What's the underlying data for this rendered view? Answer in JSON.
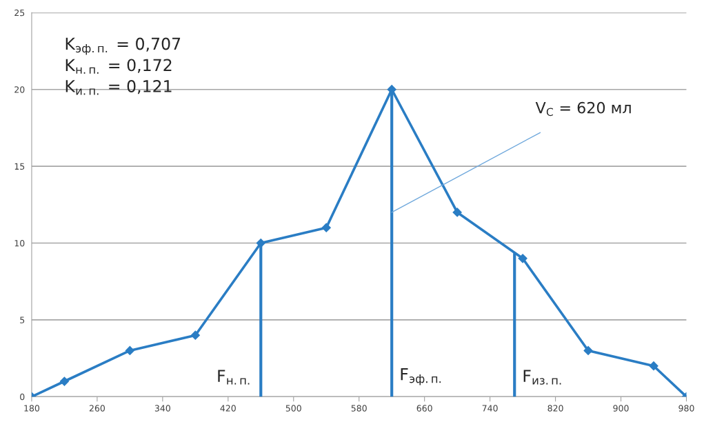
{
  "chart_data": {
    "type": "line",
    "series": [
      {
        "color": "#2a7dc4",
        "marker": "diamond",
        "x": [
          180,
          220,
          300,
          380,
          460,
          540,
          620,
          700,
          780,
          860,
          940,
          980
        ],
        "values": [
          0,
          1,
          3,
          4,
          10,
          11,
          20,
          12,
          9,
          3,
          2,
          0
        ]
      },
      {
        "color": "#2a7dc4",
        "marker": "none",
        "x": [
          460,
          460
        ],
        "values": [
          0,
          10
        ]
      },
      {
        "color": "#2a7dc4",
        "marker": "none",
        "x": [
          620,
          620
        ],
        "values": [
          0,
          20
        ]
      },
      {
        "color": "#2a7dc4",
        "marker": "none",
        "x": [
          770,
          770
        ],
        "values": [
          0,
          9.3
        ]
      }
    ],
    "xlim": [
      180,
      980
    ],
    "xticks": [
      180,
      260,
      340,
      420,
      500,
      580,
      660,
      740,
      820,
      900,
      980
    ],
    "ylim": [
      0,
      25
    ],
    "yticks": [
      0,
      5,
      10,
      15,
      20,
      25
    ],
    "grid": "y",
    "annotations": [
      "K$_{эф.п.}$ = 0,707",
      "K$_{н.п.}$ = 0,172",
      "K$_{и.п.}$ = 0,121",
      {
        "text": "V$_{С}$ = 620 мл",
        "x": 620,
        "y": 12
      },
      {
        "text": "F$_{н.п.}$",
        "x": 460,
        "y": 0
      },
      {
        "text": "F$_{эф.п.}$",
        "x": 620,
        "y": 0
      },
      {
        "text": "F$_{из.п.}$",
        "x": 770,
        "y": 0
      }
    ]
  }
}
